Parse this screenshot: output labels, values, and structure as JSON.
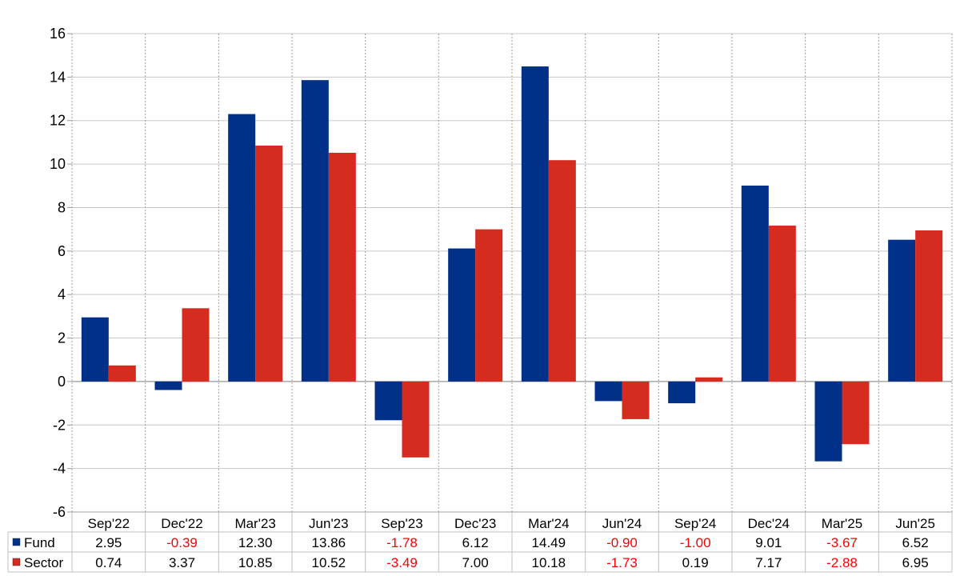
{
  "chart_data": {
    "type": "bar",
    "categories": [
      "Sep'22",
      "Dec'22",
      "Mar'23",
      "Jun'23",
      "Sep'23",
      "Dec'23",
      "Mar'24",
      "Jun'24",
      "Sep'24",
      "Dec'24",
      "Mar'25",
      "Jun'25"
    ],
    "series": [
      {
        "name": "Fund",
        "color": "#003087",
        "values": [
          2.95,
          -0.39,
          12.3,
          13.86,
          -1.78,
          6.12,
          14.49,
          -0.9,
          -1.0,
          9.01,
          -3.67,
          6.52
        ],
        "labels": [
          "2.95",
          "-0.39",
          "12.30",
          "13.86",
          "-1.78",
          "6.12",
          "14.49",
          "-0.90",
          "-1.00",
          "9.01",
          "-3.67",
          "6.52"
        ]
      },
      {
        "name": "Sector",
        "color": "#d62b1f",
        "values": [
          0.74,
          3.37,
          10.85,
          10.52,
          -3.49,
          7.0,
          10.18,
          -1.73,
          0.19,
          7.17,
          -2.88,
          6.95
        ],
        "labels": [
          "0.74",
          "3.37",
          "10.85",
          "10.52",
          "-3.49",
          "7.00",
          "10.18",
          "-1.73",
          "0.19",
          "7.17",
          "-2.88",
          "6.95"
        ]
      }
    ],
    "ylim": [
      -6,
      16
    ],
    "yticks": [
      "16",
      "14",
      "12",
      "10",
      "8",
      "6",
      "4",
      "2",
      "0",
      "-2",
      "-4",
      "-6"
    ],
    "grid": true,
    "legend": "data table below chart",
    "negative_value_color": "#ff0000"
  }
}
